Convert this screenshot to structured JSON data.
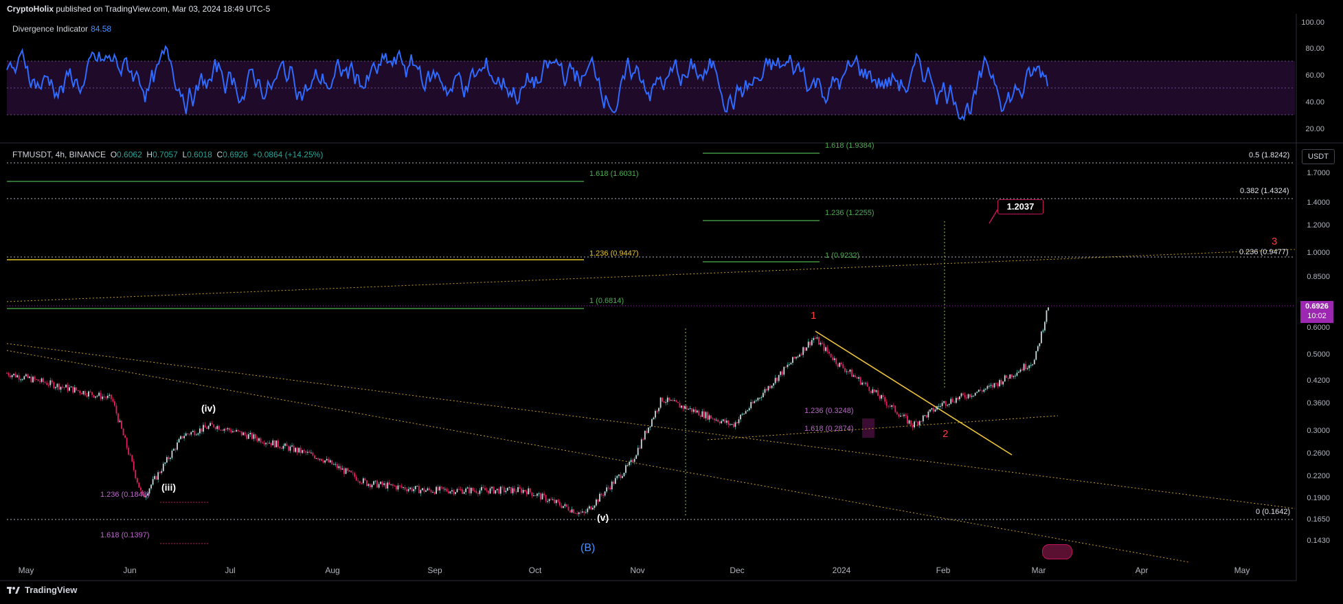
{
  "header": {
    "author": "CryptoHolix",
    "published_text": "published on TradingView.com, Mar 03, 2024 18:49 UTC-5"
  },
  "indicator": {
    "name": "Divergence Indicator",
    "value": "84.58",
    "axis_labels": [
      "100.00",
      "80.00",
      "60.00",
      "40.00",
      "20.00"
    ],
    "band_color": "#1f0a2a",
    "line_color": "#2f6bff"
  },
  "symbol_line": {
    "symbol": "FTMUSDT, 4h, BINANCE",
    "open_label": "O",
    "open": "0.6062",
    "high_label": "H",
    "high": "0.7057",
    "low_label": "L",
    "low": "0.6018",
    "close_label": "C",
    "close": "0.6926",
    "change": "+0.0864 (+14.25%)"
  },
  "currency_button": "USDT",
  "last_price": {
    "price": "0.6926",
    "countdown": "10:02",
    "color": "#9c27b0"
  },
  "price_axis_labels": [
    "1.7000",
    "1.4000",
    "1.2000",
    "1.0000",
    "0.8500",
    "0.6000",
    "0.5000",
    "0.4200",
    "0.3600",
    "0.3000",
    "0.2600",
    "0.2200",
    "0.1900",
    "0.1650",
    "0.1430"
  ],
  "time_axis_labels": [
    "May",
    "Jun",
    "Jul",
    "Aug",
    "Sep",
    "Oct",
    "Nov",
    "Dec",
    "2024",
    "Feb",
    "Mar",
    "Apr",
    "May"
  ],
  "fib_levels": {
    "right": [
      "0.5 (1.8242)",
      "0.382 (1.4324)",
      "0.236 (0.9477)",
      "0 (0.1642)"
    ],
    "green": [
      "1.618 (1.6031)",
      "1 (0.6814)"
    ],
    "yellow": [
      "1.236 (0.9447)"
    ],
    "green_upper": [
      "1.618 (1.9384)",
      "1.236 (1.2255)",
      "1 (0.9232)"
    ],
    "magenta": [
      "1.236 (0.3248)",
      "1.618 (0.2874)",
      "1.236 (0.1848)",
      "1.618 (0.1397)"
    ]
  },
  "wave_labels": {
    "iv": "(iv)",
    "iii": "(iii)",
    "v": "(v)",
    "B": "(B)",
    "w1": "1",
    "w2": "2",
    "w3": "3"
  },
  "target_box": "1.2037",
  "footer": {
    "brand": "TradingView"
  },
  "chart_data": {
    "type": "line",
    "title": "",
    "xlabel": "",
    "ylabel": "",
    "y_scale": "log",
    "ylim": [
      0.13,
      2.0
    ],
    "grid": false,
    "x": [
      "2023-05-01",
      "2023-06-01",
      "2023-06-10",
      "2023-06-22",
      "2023-07-01",
      "2023-08-01",
      "2023-08-15",
      "2023-09-01",
      "2023-10-01",
      "2023-10-18",
      "2023-11-01",
      "2023-11-10",
      "2023-12-01",
      "2023-12-25",
      "2024-01-01",
      "2024-01-10",
      "2024-01-23",
      "2024-02-01",
      "2024-02-15",
      "2024-02-28",
      "2024-03-03"
    ],
    "series": [
      {
        "values": [
          0.44,
          0.37,
          0.19,
          0.29,
          0.31,
          0.25,
          0.21,
          0.2,
          0.2,
          0.17,
          0.24,
          0.37,
          0.31,
          0.56,
          0.47,
          0.4,
          0.31,
          0.36,
          0.4,
          0.48,
          0.6926
        ]
      }
    ]
  }
}
